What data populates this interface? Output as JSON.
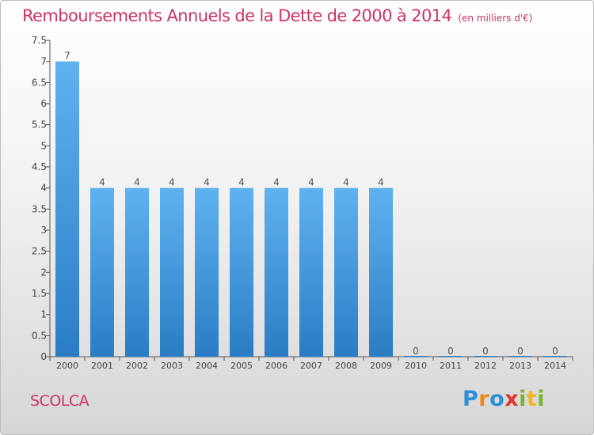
{
  "header": {
    "title": "Remboursements Annuels de la Dette de 2000 à 2014",
    "unit": "(en milliers d'€)"
  },
  "commune": "SCOLCA",
  "logo": {
    "letters": [
      {
        "char": "P",
        "color": "#2a8fd6"
      },
      {
        "char": "r",
        "color": "#f08a1c"
      },
      {
        "char": "o",
        "color": "#2a8fd6"
      },
      {
        "char": "x",
        "color": "#e2352b"
      },
      {
        "char": "i",
        "color": "#7ab52a"
      },
      {
        "char": "t",
        "color": "#f2b51c"
      },
      {
        "char": "i",
        "color": "#7ab52a"
      }
    ]
  },
  "colors": {
    "bar_light": "#5fb2f0",
    "bar_dark": "#2a7dc4",
    "accent": "#cc3366"
  },
  "chart_data": {
    "type": "bar",
    "title": "Remboursements Annuels de la Dette de 2000 à 2014",
    "categories": [
      "2000",
      "2001",
      "2002",
      "2003",
      "2004",
      "2005",
      "2006",
      "2007",
      "2008",
      "2009",
      "2010",
      "2011",
      "2012",
      "2013",
      "2014"
    ],
    "values": [
      7,
      4,
      4,
      4,
      4,
      4,
      4,
      4,
      4,
      4,
      0,
      0,
      0,
      0,
      0
    ],
    "ylim": [
      0,
      7.5
    ],
    "yticks": [
      "0",
      "0.5",
      "1",
      "1.5",
      "2",
      "2.5",
      "3",
      "3.5",
      "4",
      "4.5",
      "5",
      "5.5",
      "6",
      "6.5",
      "7",
      "7.5"
    ],
    "grid": false
  }
}
